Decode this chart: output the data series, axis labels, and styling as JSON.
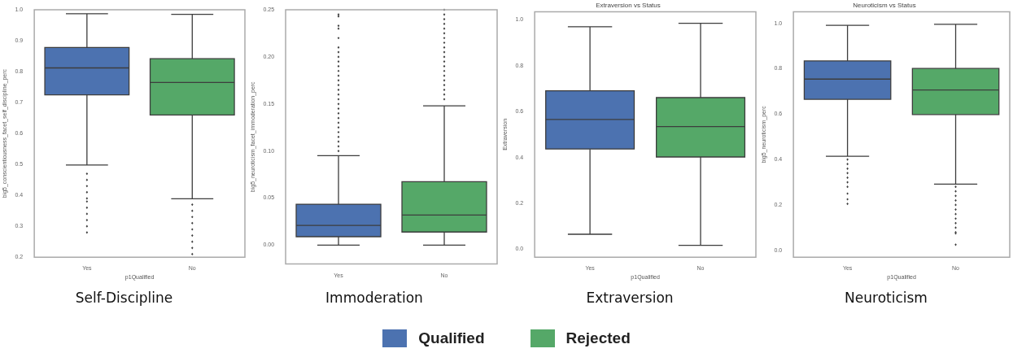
{
  "chart_data": [
    {
      "type": "box",
      "ylabel": "big5_conscientiousness_facet_self_discipline_perc",
      "xlabel": "p1Qualified",
      "categories": [
        "Yes",
        "No"
      ],
      "ylim": [
        0.2,
        1.0
      ],
      "yticks": [
        0.2,
        0.3,
        0.4,
        0.5,
        0.6,
        0.7,
        0.8,
        0.9,
        {
          "value": 1,
          "label": "1.0"
        }
      ],
      "legend": "bottom",
      "annotations": [
        "Self-Discipline"
      ],
      "series": [
        {
          "name": "Qualified",
          "color": "#4c72b0",
          "boxes": [
            {
              "low": 0.498,
              "q1": 0.725,
              "median": 0.812,
              "q3": 0.878,
              "high": 0.987,
              "outliers": [
                0.47,
                0.45,
                0.43,
                0.41,
                0.39,
                0.38,
                0.36,
                0.34,
                0.32,
                0.3,
                0.28
              ]
            },
            null
          ]
        },
        {
          "name": "Rejected",
          "color": "#55a868",
          "boxes": [
            null,
            {
              "low": 0.389,
              "q1": 0.66,
              "median": 0.765,
              "q3": 0.842,
              "high": 0.985,
              "outliers": [
                0.37,
                0.35,
                0.33,
                0.31,
                0.29,
                0.27,
                0.25,
                0.23,
                0.21
              ]
            }
          ]
        }
      ]
    },
    {
      "type": "box",
      "ylabel": "big5_neuroticism_facet_immoderation_perc",
      "categories": [
        "Yes",
        "No"
      ],
      "ylim": [
        -0.02,
        0.25
      ],
      "yticks": [
        {
          "value": 0,
          "label": "0.00"
        },
        {
          "value": 0.05,
          "label": "0.05"
        },
        {
          "value": 0.1,
          "label": "0.10"
        },
        {
          "value": 0.15,
          "label": "0.15"
        },
        {
          "value": 0.2,
          "label": "0.20"
        },
        {
          "value": 0.25,
          "label": "0.25"
        }
      ],
      "annotations": [
        "Immoderation"
      ],
      "series": [
        {
          "color": "#4c72b0",
          "boxes": [
            {
              "low": 0.0,
              "q1": 0.009,
              "median": 0.021,
              "q3": 0.0435,
              "high": 0.095,
              "outliers": [
                0.1,
                0.105,
                0.11,
                0.115,
                0.12,
                0.125,
                0.13,
                0.135,
                0.14,
                0.145,
                0.15,
                0.155,
                0.16,
                0.165,
                0.17,
                0.175,
                0.18,
                0.185,
                0.19,
                0.195,
                0.2,
                0.205,
                0.21,
                0.22,
                0.23,
                0.233,
                0.243,
                0.245
              ]
            },
            null
          ]
        },
        {
          "color": "#55a868",
          "boxes": [
            null,
            {
              "low": 0.0,
              "q1": 0.014,
              "median": 0.032,
              "q3": 0.0675,
              "high": 0.148,
              "outliers": [
                0.155,
                0.16,
                0.165,
                0.17,
                0.175,
                0.18,
                0.185,
                0.19,
                0.195,
                0.2,
                0.205,
                0.21,
                0.215,
                0.22,
                0.225,
                0.23,
                0.235,
                0.24,
                0.245,
                0.25
              ]
            }
          ]
        }
      ]
    },
    {
      "type": "box",
      "title": "Extraversion vs Status",
      "ylabel": "Extraversion",
      "xlabel": "p1Qualified",
      "categories": [
        "Yes",
        "No"
      ],
      "ylim": [
        -0.035,
        1.035
      ],
      "yticks": [
        {
          "value": 0,
          "label": "0.0"
        },
        0.2,
        0.4,
        0.6,
        0.8,
        {
          "value": 1,
          "label": "1.0"
        }
      ],
      "annotations": [
        "Extraversion"
      ],
      "series": [
        {
          "color": "#4c72b0",
          "boxes": [
            {
              "low": 0.065,
              "q1": 0.437,
              "median": 0.566,
              "q3": 0.691,
              "high": 0.97
            },
            null
          ]
        },
        {
          "color": "#55a868",
          "boxes": [
            null,
            {
              "low": 0.017,
              "q1": 0.402,
              "median": 0.535,
              "q3": 0.661,
              "high": 0.985
            }
          ]
        }
      ]
    },
    {
      "type": "box",
      "title": "Neuroticism vs Status",
      "ylabel": "big5_neuroticism_perc",
      "xlabel": "p1Qualified",
      "categories": [
        "Yes",
        "No"
      ],
      "ylim": [
        -0.03,
        1.05
      ],
      "yticks": [
        {
          "value": 0,
          "label": "0.0"
        },
        0.2,
        0.4,
        0.6,
        0.8,
        {
          "value": 1,
          "label": "1.0"
        }
      ],
      "annotations": [
        "Neuroticism"
      ],
      "series": [
        {
          "color": "#4c72b0",
          "boxes": [
            {
              "low": 0.414,
              "q1": 0.665,
              "median": 0.754,
              "q3": 0.834,
              "high": 0.991,
              "outliers": [
                0.4,
                0.38,
                0.36,
                0.34,
                0.32,
                0.3,
                0.28,
                0.25,
                0.225,
                0.205
              ]
            },
            null
          ]
        },
        {
          "color": "#55a868",
          "boxes": [
            null,
            {
              "low": 0.292,
              "q1": 0.598,
              "median": 0.706,
              "q3": 0.801,
              "high": 0.995,
              "outliers": [
                0.28,
                0.26,
                0.24,
                0.22,
                0.2,
                0.18,
                0.16,
                0.14,
                0.12,
                0.1,
                0.08,
                0.075,
                0.025
              ]
            }
          ]
        }
      ]
    }
  ]
}
